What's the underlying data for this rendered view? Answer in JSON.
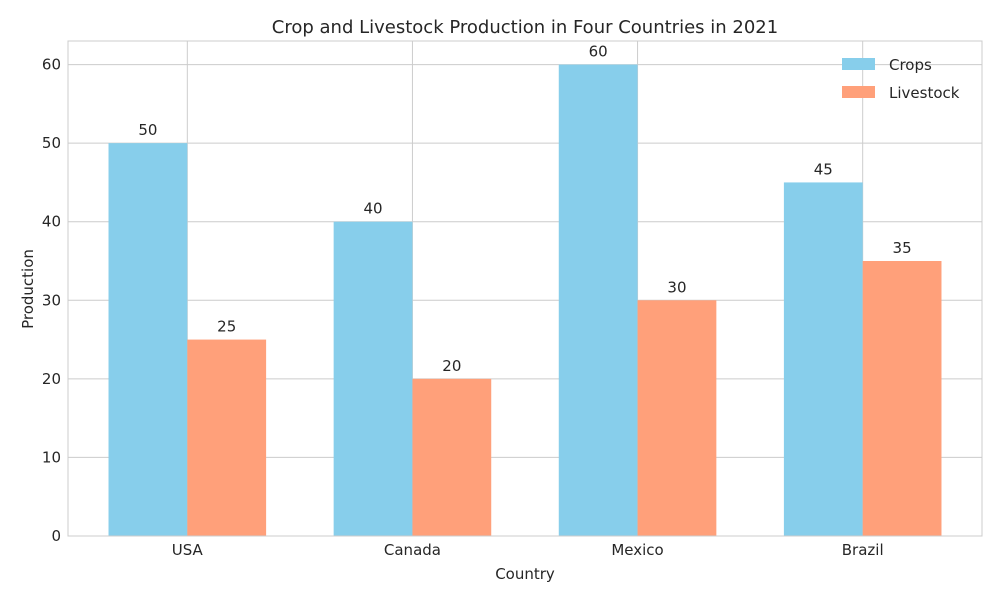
{
  "chart_data": {
    "type": "bar",
    "title": "Crop and Livestock Production in Four Countries in 2021",
    "xlabel": "Country",
    "ylabel": "Production",
    "categories": [
      "USA",
      "Canada",
      "Mexico",
      "Brazil"
    ],
    "series": [
      {
        "name": "Crops",
        "values": [
          50,
          40,
          60,
          45
        ],
        "color": "#87ceeb"
      },
      {
        "name": "Livestock",
        "values": [
          25,
          20,
          30,
          35
        ],
        "color": "#ffa07a"
      }
    ],
    "ylim": [
      0,
      63
    ],
    "yticks": [
      0,
      10,
      20,
      30,
      40,
      50,
      60
    ],
    "grid": true,
    "legend": "top-right"
  }
}
